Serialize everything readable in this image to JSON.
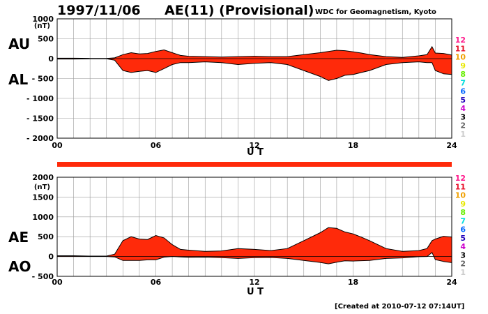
{
  "header": {
    "date": "1997/11/06",
    "title": "AE(11) (Provisional)",
    "source": "WDC for Geomagnetism, Kyoto"
  },
  "footer": {
    "created": "[Created at 2010-07-12 07:14UT]"
  },
  "legend": {
    "labels": [
      "12",
      "11",
      "10",
      "9",
      "8",
      "7",
      "6",
      "5",
      "4",
      "3",
      "2",
      "1"
    ],
    "colors": [
      "#ff1a8c",
      "#e8102a",
      "#f0a000",
      "#e8e800",
      "#66ee00",
      "#00dddd",
      "#0066ff",
      "#2200bb",
      "#cc00cc",
      "#000000",
      "#666666",
      "#cccccc"
    ]
  },
  "strip": {
    "color": "#ff2a0a"
  },
  "chart_data": [
    {
      "type": "area",
      "panel": "AU/AL",
      "series": [
        {
          "name": "AU",
          "x": [
            0,
            1,
            2,
            3,
            3.5,
            4,
            4.5,
            5,
            5.5,
            6,
            6.5,
            7,
            7.5,
            8,
            9,
            10,
            11,
            12,
            13,
            14,
            15,
            16,
            16.5,
            17,
            17.5,
            18,
            18.5,
            19,
            20,
            21,
            22,
            22.5,
            22.8,
            23,
            23.5,
            24
          ],
          "values": [
            10,
            10,
            5,
            5,
            20,
            100,
            150,
            120,
            130,
            180,
            220,
            150,
            80,
            60,
            50,
            40,
            50,
            60,
            50,
            50,
            100,
            150,
            180,
            210,
            200,
            170,
            140,
            100,
            50,
            30,
            70,
            100,
            300,
            140,
            130,
            90
          ]
        },
        {
          "name": "AL",
          "x": [
            0,
            1,
            2,
            3,
            3.5,
            4,
            4.5,
            5,
            5.5,
            6,
            6.5,
            7,
            7.5,
            8,
            9,
            10,
            11,
            12,
            13,
            14,
            15,
            16,
            16.5,
            17,
            17.5,
            18,
            18.5,
            19,
            20,
            21,
            22,
            22.5,
            22.8,
            23,
            23.5,
            24
          ],
          "values": [
            -10,
            -10,
            -5,
            -5,
            -40,
            -300,
            -350,
            -320,
            -300,
            -350,
            -250,
            -150,
            -100,
            -100,
            -80,
            -100,
            -150,
            -120,
            -100,
            -150,
            -300,
            -450,
            -550,
            -500,
            -420,
            -400,
            -350,
            -300,
            -150,
            -100,
            -80,
            -100,
            -100,
            -300,
            -380,
            -400
          ]
        }
      ],
      "units": "(nT)",
      "ylim": [
        -2000,
        1000
      ],
      "yticks": [
        "1000",
        "500",
        "0",
        "- 500",
        "- 1000",
        "- 1500",
        "- 2000"
      ],
      "xlim": [
        0,
        24
      ],
      "xticks": [
        "00",
        "06",
        "12",
        "18",
        "24"
      ],
      "xlabel": "U T",
      "labels_left": [
        "AU",
        "AL"
      ],
      "fill_color": "#ff2a0a",
      "grid": true
    },
    {
      "type": "area",
      "panel": "AE/AO",
      "series": [
        {
          "name": "AE",
          "x": [
            0,
            1,
            2,
            3,
            3.5,
            4,
            4.5,
            5,
            5.5,
            6,
            6.5,
            7,
            7.5,
            8,
            9,
            10,
            11,
            12,
            13,
            14,
            15,
            16,
            16.5,
            17,
            17.5,
            18,
            18.5,
            19,
            20,
            21,
            22,
            22.5,
            22.8,
            23,
            23.5,
            24
          ],
          "values": [
            20,
            20,
            10,
            10,
            60,
            400,
            500,
            440,
            430,
            530,
            470,
            300,
            180,
            160,
            130,
            140,
            200,
            180,
            150,
            200,
            400,
            600,
            730,
            710,
            620,
            570,
            490,
            400,
            200,
            130,
            150,
            200,
            400,
            440,
            510,
            490
          ]
        },
        {
          "name": "AO",
          "x": [
            0,
            1,
            2,
            3,
            3.5,
            4,
            4.5,
            5,
            5.5,
            6,
            6.5,
            7,
            7.5,
            8,
            9,
            10,
            11,
            12,
            13,
            14,
            15,
            16,
            16.5,
            17,
            17.5,
            18,
            18.5,
            19,
            20,
            21,
            22,
            22.5,
            22.8,
            23,
            23.5,
            24
          ],
          "values": [
            0,
            0,
            0,
            0,
            -10,
            -100,
            -100,
            -100,
            -85,
            -85,
            -15,
            0,
            -10,
            -20,
            -15,
            -30,
            -50,
            -30,
            -25,
            -50,
            -100,
            -150,
            -185,
            -145,
            -110,
            -115,
            -105,
            -100,
            -50,
            -35,
            -5,
            0,
            100,
            -80,
            -125,
            -155
          ]
        }
      ],
      "units": "(nT)",
      "ylim": [
        -500,
        2000
      ],
      "yticks": [
        "2000",
        "1500",
        "1000",
        "500",
        "0",
        "- 500"
      ],
      "xlim": [
        0,
        24
      ],
      "xticks": [
        "00",
        "06",
        "12",
        "18",
        "24"
      ],
      "xlabel": "U T",
      "labels_left": [
        "AE",
        "AO"
      ],
      "fill_color": "#ff2a0a",
      "grid": true
    }
  ]
}
